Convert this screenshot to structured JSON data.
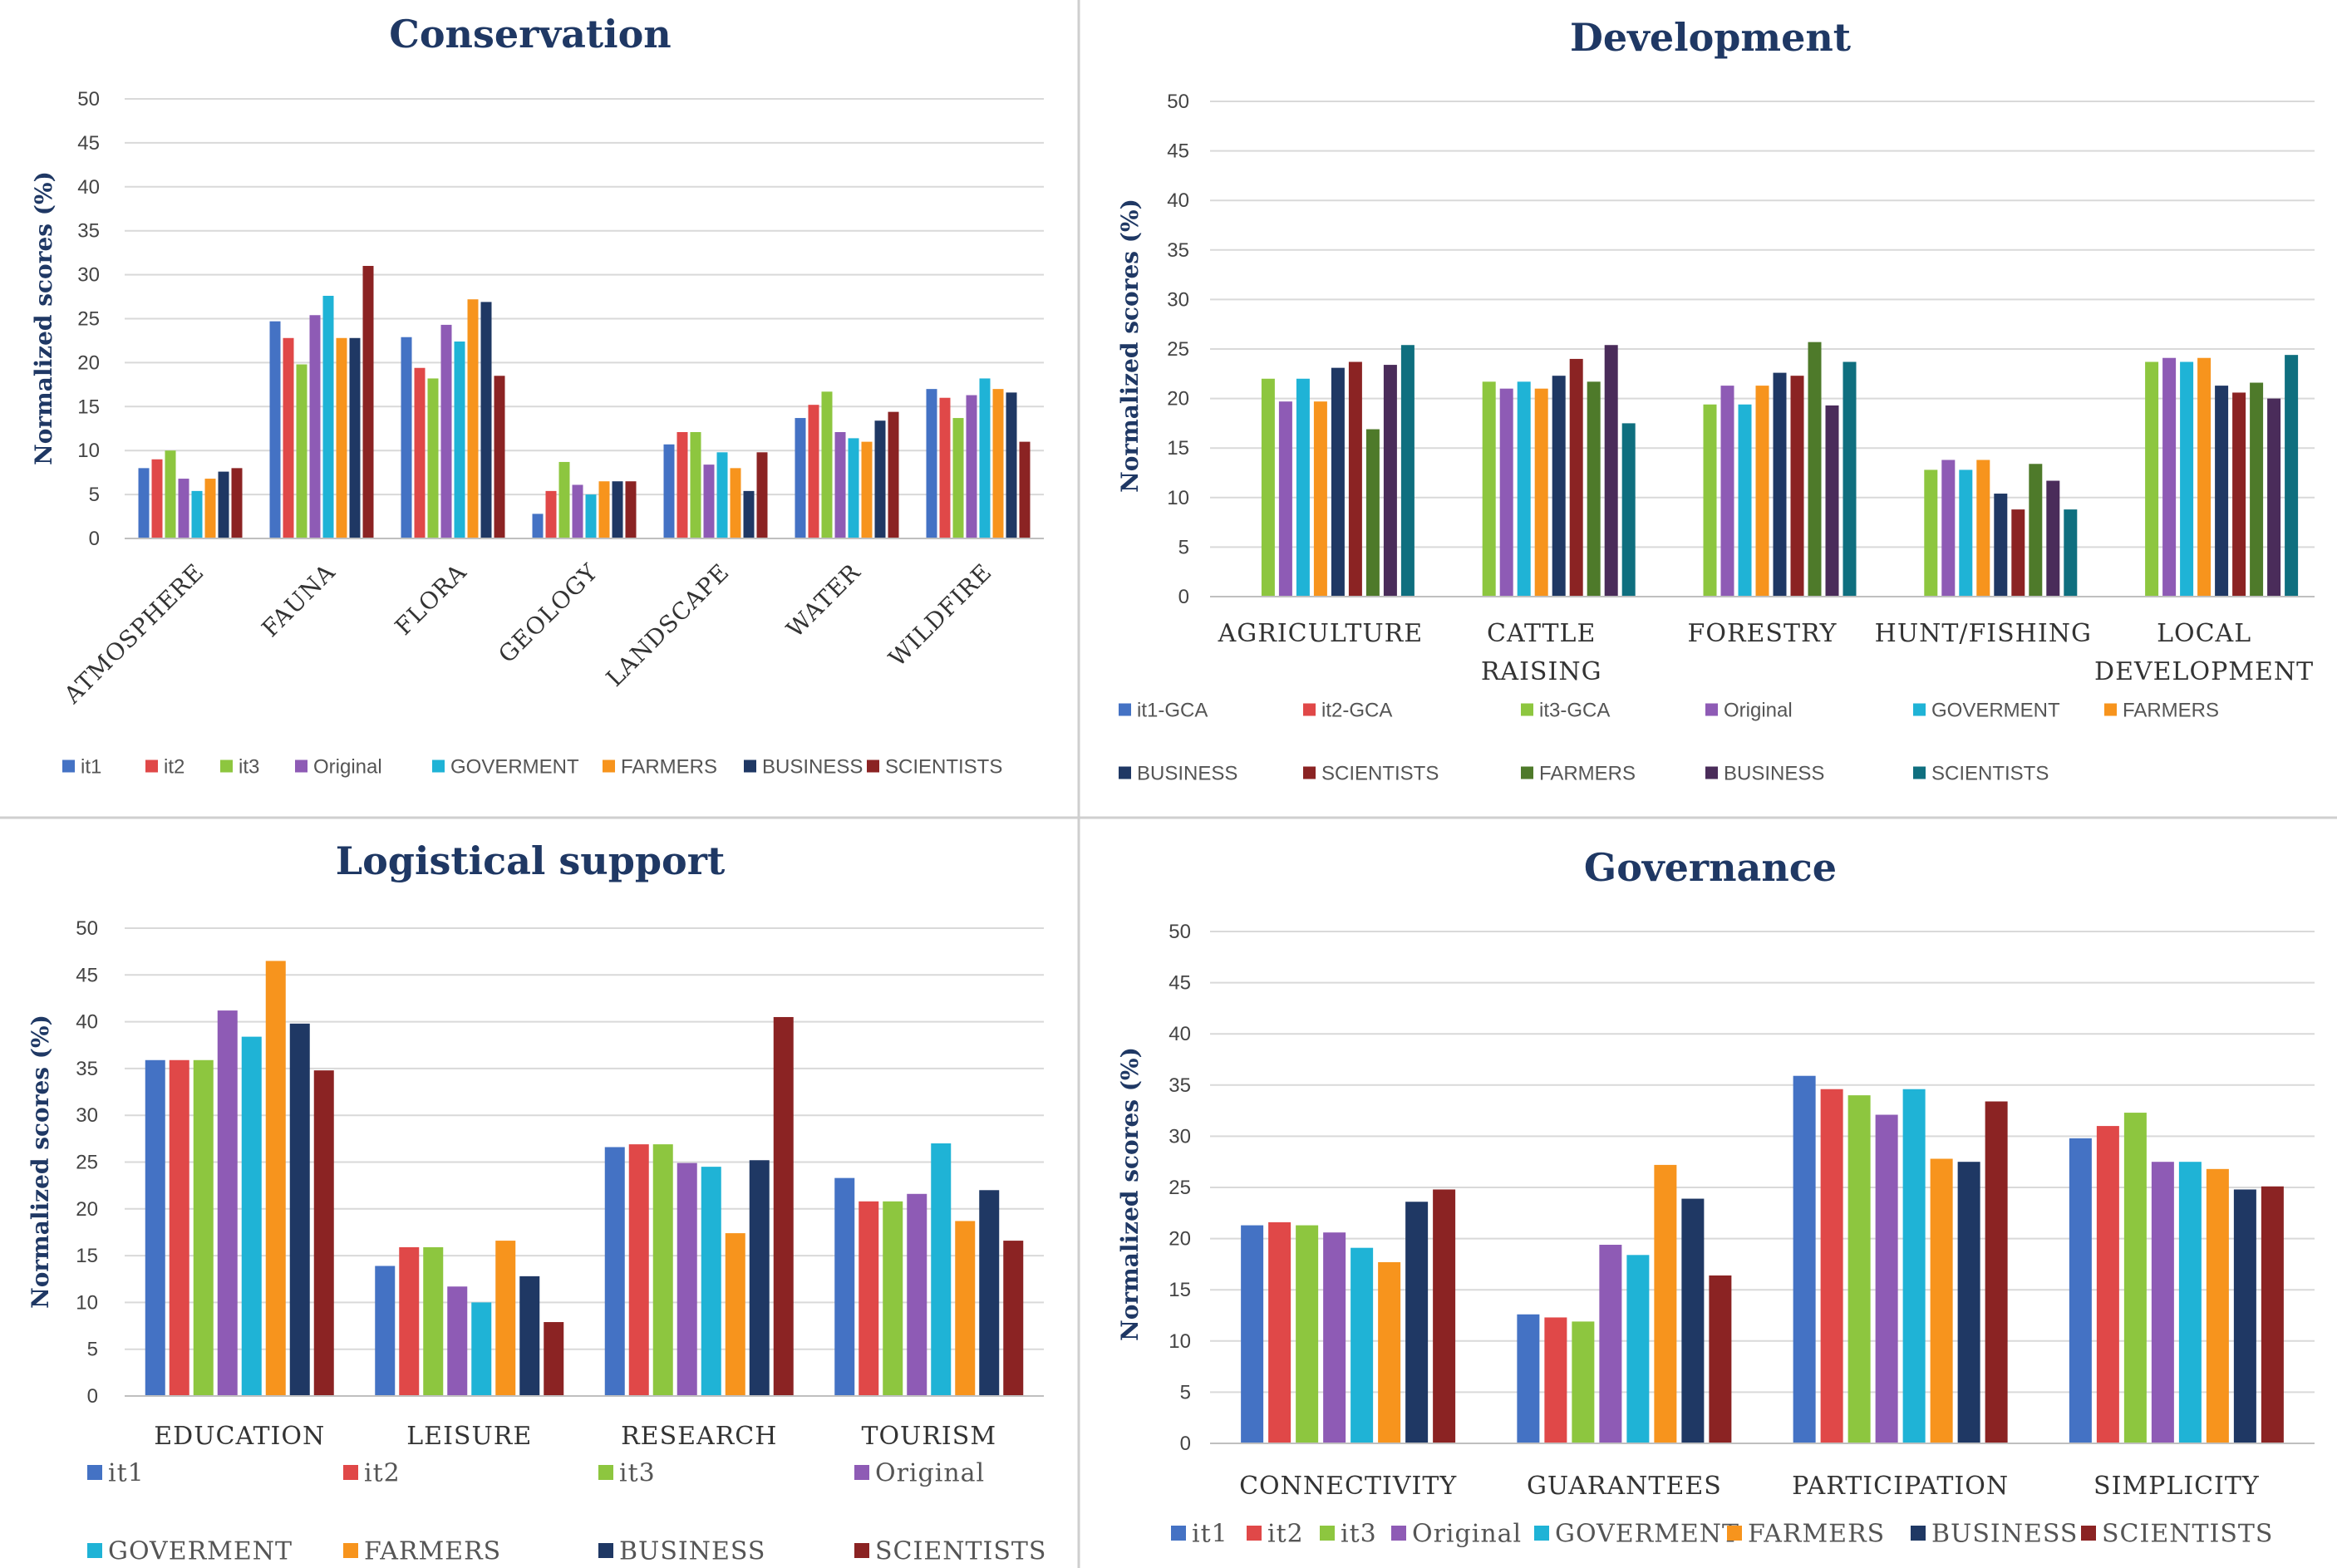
{
  "chart_data": [
    {
      "type": "bar",
      "title": "Conservation",
      "ylabel": "Normalized scores (%)",
      "xlabel": "",
      "ylim": [
        0,
        50
      ],
      "yticks": [
        "0",
        "5",
        "10",
        "15",
        "20",
        "25",
        "30",
        "35",
        "40",
        "45",
        "50"
      ],
      "grid": true,
      "legend_position": "bottom",
      "categories": [
        "ATMOSPHERE",
        "FAUNA",
        "FLORA",
        "GEOLOGY",
        "LANDSCAPE",
        "WATER",
        "WILDFIRE"
      ],
      "series": [
        {
          "name": "it1",
          "color": "#4472c4",
          "values": [
            8,
            24.7,
            22.9,
            2.8,
            10.7,
            13.7,
            17
          ]
        },
        {
          "name": "it2",
          "color": "#e04848",
          "values": [
            9,
            22.8,
            19.4,
            5.4,
            12.1,
            15.2,
            16
          ]
        },
        {
          "name": "it3",
          "color": "#8dc63f",
          "values": [
            10,
            19.8,
            18.2,
            8.7,
            12.1,
            16.7,
            13.7
          ]
        },
        {
          "name": "Original",
          "color": "#8e5bb5",
          "values": [
            6.8,
            25.4,
            24.3,
            6.1,
            8.4,
            12.1,
            16.3
          ]
        },
        {
          "name": "GOVERMENT",
          "color": "#1fb3d6",
          "values": [
            5.4,
            27.6,
            22.4,
            5,
            9.8,
            11.4,
            18.2
          ]
        },
        {
          "name": "FARMERS",
          "color": "#f7941d",
          "values": [
            6.8,
            22.8,
            27.2,
            6.5,
            8,
            11,
            17
          ]
        },
        {
          "name": "BUSINESS",
          "color": "#1f3864",
          "values": [
            7.6,
            22.8,
            26.9,
            6.5,
            5.4,
            13.4,
            16.6
          ]
        },
        {
          "name": "SCIENTISTS",
          "color": "#8b2323",
          "values": [
            8,
            31,
            18.5,
            6.5,
            9.8,
            14.4,
            11
          ]
        }
      ]
    },
    {
      "type": "bar",
      "title": "Development",
      "ylabel": "Normalized scores (%)",
      "xlabel": "",
      "ylim": [
        0,
        50
      ],
      "yticks": [
        "0",
        "5",
        "10",
        "15",
        "20",
        "25",
        "30",
        "35",
        "40",
        "45",
        "50"
      ],
      "grid": true,
      "legend_position": "bottom",
      "categories": [
        [
          "AGRICULTURE"
        ],
        [
          "CATTLE",
          "RAISING"
        ],
        [
          "FORESTRY"
        ],
        [
          "HUNT/FISHING"
        ],
        [
          "LOCAL",
          "DEVELOPMENT"
        ]
      ],
      "series": [
        {
          "name": "it1-GCA",
          "color": "#4472c4",
          "values": [
            0,
            0,
            0,
            0,
            0
          ]
        },
        {
          "name": "it2-GCA",
          "color": "#e04848",
          "values": [
            0,
            0,
            0,
            0,
            0
          ]
        },
        {
          "name": "it3-GCA",
          "color": "#8dc63f",
          "values": [
            22,
            21.7,
            19.4,
            12.8,
            23.7
          ]
        },
        {
          "name": "Original",
          "color": "#8e5bb5",
          "values": [
            19.7,
            21,
            21.3,
            13.8,
            24.1
          ]
        },
        {
          "name": "GOVERMENT",
          "color": "#1fb3d6",
          "values": [
            22,
            21.7,
            19.4,
            12.8,
            23.7
          ]
        },
        {
          "name": "FARMERS",
          "color": "#f7941d",
          "values": [
            19.7,
            21,
            21.3,
            13.8,
            24.1
          ]
        },
        {
          "name": "BUSINESS",
          "color": "#1f3864",
          "values": [
            23.1,
            22.3,
            22.6,
            10.4,
            21.3
          ]
        },
        {
          "name": "SCIENTISTS",
          "color": "#8b2323",
          "values": [
            23.7,
            24,
            22.3,
            8.8,
            20.6
          ]
        },
        {
          "name": "FARMERS",
          "color": "#4e7a2a",
          "values": [
            16.9,
            21.7,
            25.7,
            13.4,
            21.6
          ]
        },
        {
          "name": "BUSINESS",
          "color": "#4a2c5a",
          "values": [
            23.4,
            25.4,
            19.3,
            11.7,
            20
          ]
        },
        {
          "name": "SCIENTISTS",
          "color": "#0f6f7f",
          "values": [
            25.4,
            17.5,
            23.7,
            8.8,
            24.4
          ]
        }
      ]
    },
    {
      "type": "bar",
      "title": "Logistical support",
      "ylabel": "Normalized scores (%)",
      "xlabel": "",
      "ylim": [
        0,
        50
      ],
      "yticks": [
        "0",
        "5",
        "10",
        "15",
        "20",
        "25",
        "30",
        "35",
        "40",
        "45",
        "50"
      ],
      "grid": true,
      "legend_position": "bottom",
      "categories": [
        [
          "EDUCATION"
        ],
        [
          "LEISURE"
        ],
        [
          "RESEARCH"
        ],
        [
          "TOURISM"
        ]
      ],
      "series": [
        {
          "name": "it1",
          "color": "#4472c4",
          "values": [
            35.9,
            13.9,
            26.6,
            23.3
          ]
        },
        {
          "name": "it2",
          "color": "#e04848",
          "values": [
            35.9,
            15.9,
            26.9,
            20.8
          ]
        },
        {
          "name": "it3",
          "color": "#8dc63f",
          "values": [
            35.9,
            15.9,
            26.9,
            20.8
          ]
        },
        {
          "name": "Original",
          "color": "#8e5bb5",
          "values": [
            41.2,
            11.7,
            24.9,
            21.6
          ]
        },
        {
          "name": "GOVERMENT",
          "color": "#1fb3d6",
          "values": [
            38.4,
            10,
            24.5,
            27
          ]
        },
        {
          "name": "FARMERS",
          "color": "#f7941d",
          "values": [
            46.5,
            16.6,
            17.4,
            18.7
          ]
        },
        {
          "name": "BUSINESS",
          "color": "#1f3864",
          "values": [
            39.8,
            12.8,
            25.2,
            22
          ]
        },
        {
          "name": "SCIENTISTS",
          "color": "#8b2323",
          "values": [
            34.8,
            7.9,
            40.5,
            16.6
          ]
        }
      ]
    },
    {
      "type": "bar",
      "title": "Governance",
      "ylabel": "Normalized scores (%)",
      "xlabel": "",
      "ylim": [
        0,
        50
      ],
      "yticks": [
        "0",
        "5",
        "10",
        "15",
        "20",
        "25",
        "30",
        "35",
        "40",
        "45",
        "50"
      ],
      "grid": true,
      "legend_position": "bottom",
      "categories": [
        [
          "CONNECTIVITY"
        ],
        [
          "GUARANTEES"
        ],
        [
          "PARTICIPATION"
        ],
        [
          "SIMPLICITY"
        ]
      ],
      "series": [
        {
          "name": "it1",
          "color": "#4472c4",
          "values": [
            21.3,
            12.6,
            35.9,
            29.8
          ]
        },
        {
          "name": "it2",
          "color": "#e04848",
          "values": [
            21.6,
            12.3,
            34.6,
            31
          ]
        },
        {
          "name": "it3",
          "color": "#8dc63f",
          "values": [
            21.3,
            11.9,
            34,
            32.3
          ]
        },
        {
          "name": "Original",
          "color": "#8e5bb5",
          "values": [
            20.6,
            19.4,
            32.1,
            27.5
          ]
        },
        {
          "name": "GOVERMENT",
          "color": "#1fb3d6",
          "values": [
            19.1,
            18.4,
            34.6,
            27.5
          ]
        },
        {
          "name": "FARMERS",
          "color": "#f7941d",
          "values": [
            17.7,
            27.2,
            27.8,
            26.8
          ]
        },
        {
          "name": "BUSINESS",
          "color": "#1f3864",
          "values": [
            23.6,
            23.9,
            27.5,
            24.8
          ]
        },
        {
          "name": "SCIENTISTS",
          "color": "#8b2323",
          "values": [
            24.8,
            16.4,
            33.4,
            25.1
          ]
        }
      ]
    }
  ]
}
